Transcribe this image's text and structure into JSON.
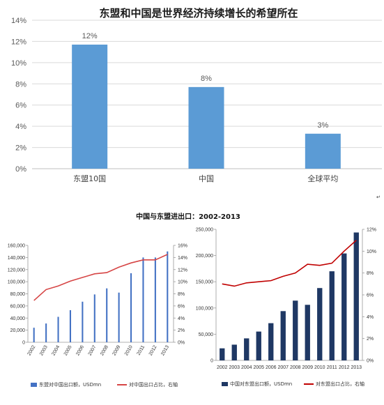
{
  "chart_data": [
    {
      "type": "bar",
      "title": "东盟和中国是世界经济持续增长的希望所在",
      "categories": [
        "东盟10国",
        "中国",
        "全球平均"
      ],
      "values": [
        12,
        8,
        3
      ],
      "data_labels": [
        "12%",
        "8%",
        "3%"
      ],
      "y_ticks": [
        "0%",
        "2%",
        "4%",
        "6%",
        "8%",
        "10%",
        "12%",
        "14%"
      ],
      "ylim": [
        0,
        14
      ],
      "color": "#5b9bd5",
      "grid": true
    },
    {
      "type": "bar",
      "title": "中国与东盟进出口：2002-2013",
      "x": [
        "2002",
        "2003",
        "2004",
        "2005",
        "2006",
        "2007",
        "2008",
        "2009",
        "2010",
        "2011",
        "2012",
        "2013"
      ],
      "series": [
        {
          "name": "东盟对中国出口额，USDmn",
          "axis": "left",
          "values": [
            24000,
            31000,
            42000,
            53000,
            67000,
            79000,
            89000,
            82000,
            114000,
            140000,
            140000,
            150000
          ],
          "color": "#4472c4"
        },
        {
          "name": "对中国出口占比，右轴",
          "axis": "right",
          "type": "line",
          "values": [
            6.9,
            8.7,
            9.3,
            10.1,
            10.7,
            11.3,
            11.5,
            12.4,
            13.1,
            13.6,
            13.6,
            14.5
          ],
          "color": "#d64545"
        }
      ],
      "y_left_ticks": [
        "0",
        "20,000",
        "40,000",
        "60,000",
        "80,000",
        "100,000",
        "120,000",
        "140,000",
        "160,000"
      ],
      "y_right_ticks": [
        "0%",
        "2%",
        "4%",
        "6%",
        "8%",
        "10%",
        "12%",
        "14%",
        "16%"
      ],
      "ylim_left": [
        0,
        160000
      ],
      "ylim_right": [
        0,
        16
      ]
    },
    {
      "type": "bar",
      "x": [
        "2002",
        "2003",
        "2004",
        "2005",
        "2006",
        "2007",
        "2008",
        "2009",
        "2010",
        "2011",
        "2012",
        "2013"
      ],
      "series": [
        {
          "name": "中国对东盟出口额，USDmn",
          "axis": "left",
          "values": [
            23000,
            30000,
            42000,
            55000,
            71000,
            94000,
            114000,
            106000,
            138000,
            170000,
            204000,
            244000
          ],
          "color": "#1f3864"
        },
        {
          "name": "对东盟出口占比，右轴",
          "axis": "right",
          "type": "line",
          "values": [
            7.0,
            6.8,
            7.1,
            7.2,
            7.3,
            7.7,
            8.0,
            8.8,
            8.7,
            8.9,
            10.0,
            11.0
          ],
          "color": "#c00000"
        }
      ],
      "y_left_ticks": [
        "0",
        "50,000",
        "100,000",
        "150,000",
        "200,000",
        "250,000"
      ],
      "y_right_ticks": [
        "0%",
        "2%",
        "4%",
        "6%",
        "8%",
        "10%",
        "12%"
      ],
      "ylim_left": [
        0,
        250000
      ],
      "ylim_right": [
        0,
        12
      ]
    }
  ]
}
